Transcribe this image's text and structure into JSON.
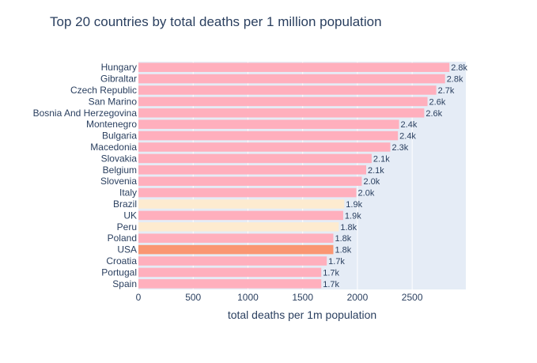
{
  "chart_data": {
    "type": "bar",
    "orientation": "horizontal",
    "title": "Top 20 countries by total deaths per 1 million population",
    "xlabel": "total deaths per 1m population",
    "ylabel": "",
    "xlim": [
      0,
      2990
    ],
    "xticks": [
      0,
      500,
      1000,
      1500,
      2000,
      2500
    ],
    "grid": true,
    "legend": "none",
    "colors": {
      "plot_bg": "#e5ecf6",
      "default": "#ffafbd",
      "highlight_light": "#fdebd0",
      "highlight_dark": "#fa9672",
      "grid": "#ffffff",
      "text": "#2a3f5f"
    },
    "categories": [
      "Hungary",
      "Gibraltar",
      "Czech Republic",
      "San Marino",
      "Bosnia And Herzegovina",
      "Montenegro",
      "Bulgaria",
      "Macedonia",
      "Slovakia",
      "Belgium",
      "Slovenia",
      "Italy",
      "Brazil",
      "UK",
      "Peru",
      "Poland",
      "USA",
      "Croatia",
      "Portugal",
      "Spain"
    ],
    "values": [
      2840,
      2800,
      2720,
      2640,
      2610,
      2380,
      2370,
      2300,
      2130,
      2080,
      2040,
      1990,
      1880,
      1870,
      1830,
      1780,
      1780,
      1720,
      1670,
      1670
    ],
    "labels": [
      "2.8k",
      "2.8k",
      "2.7k",
      "2.6k",
      "2.6k",
      "2.4k",
      "2.4k",
      "2.3k",
      "2.1k",
      "2.1k",
      "2.0k",
      "2.0k",
      "1.9k",
      "1.9k",
      "1.8k",
      "1.8k",
      "1.8k",
      "1.7k",
      "1.7k",
      "1.7k"
    ],
    "bar_colors": [
      "default",
      "default",
      "default",
      "default",
      "default",
      "default",
      "default",
      "default",
      "default",
      "default",
      "default",
      "default",
      "highlight_light",
      "default",
      "highlight_light",
      "default",
      "highlight_dark",
      "default",
      "default",
      "default"
    ]
  }
}
